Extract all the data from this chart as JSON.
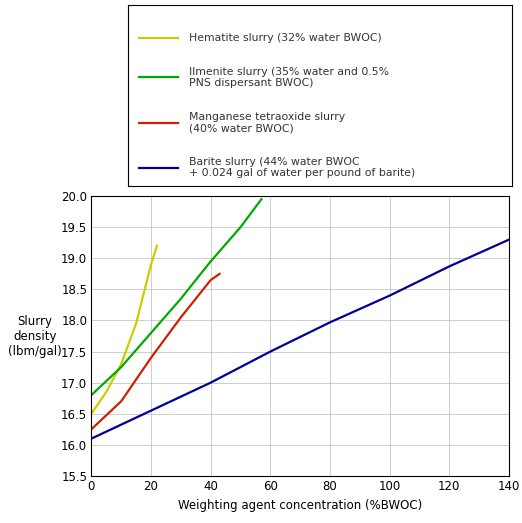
{
  "lines": [
    {
      "label": "Hematite slurry (32% water BWOC)",
      "color": "#cccc00",
      "x": [
        0,
        5,
        10,
        15,
        20,
        22
      ],
      "y": [
        16.5,
        16.85,
        17.3,
        17.95,
        18.9,
        19.2
      ]
    },
    {
      "label": "Ilmenite slurry (35% water and 0.5%\nPNS dispersant BWOC)",
      "color": "#00aa00",
      "x": [
        0,
        10,
        20,
        30,
        40,
        50,
        57
      ],
      "y": [
        16.8,
        17.25,
        17.8,
        18.35,
        18.95,
        19.5,
        19.95
      ]
    },
    {
      "label": "Manganese tetraoxide slurry\n(40% water BWOC)",
      "color": "#cc2200",
      "x": [
        0,
        10,
        20,
        30,
        40,
        43
      ],
      "y": [
        16.25,
        16.7,
        17.4,
        18.05,
        18.65,
        18.75
      ]
    },
    {
      "label": "Barite slurry (44% water BWOC\n+ 0.024 gal of water per pound of barite)",
      "color": "#000099",
      "x": [
        0,
        20,
        40,
        60,
        80,
        100,
        120,
        140
      ],
      "y": [
        16.1,
        16.55,
        17.0,
        17.5,
        17.97,
        18.4,
        18.87,
        19.3
      ]
    }
  ],
  "xlim": [
    0,
    140
  ],
  "ylim": [
    15.5,
    20.0
  ],
  "xticks": [
    0,
    20,
    40,
    60,
    80,
    100,
    120,
    140
  ],
  "yticks": [
    15.5,
    16.0,
    16.5,
    17.0,
    17.5,
    18.0,
    18.5,
    19.0,
    19.5,
    20.0
  ],
  "xlabel": "Weighting agent concentration (%BWOC)",
  "ylabel": "Slurry\ndensity\n(lbm/gal)",
  "background_color": "#ffffff",
  "grid_color": "#bbbbbb",
  "fig_width": 5.22,
  "fig_height": 5.23
}
